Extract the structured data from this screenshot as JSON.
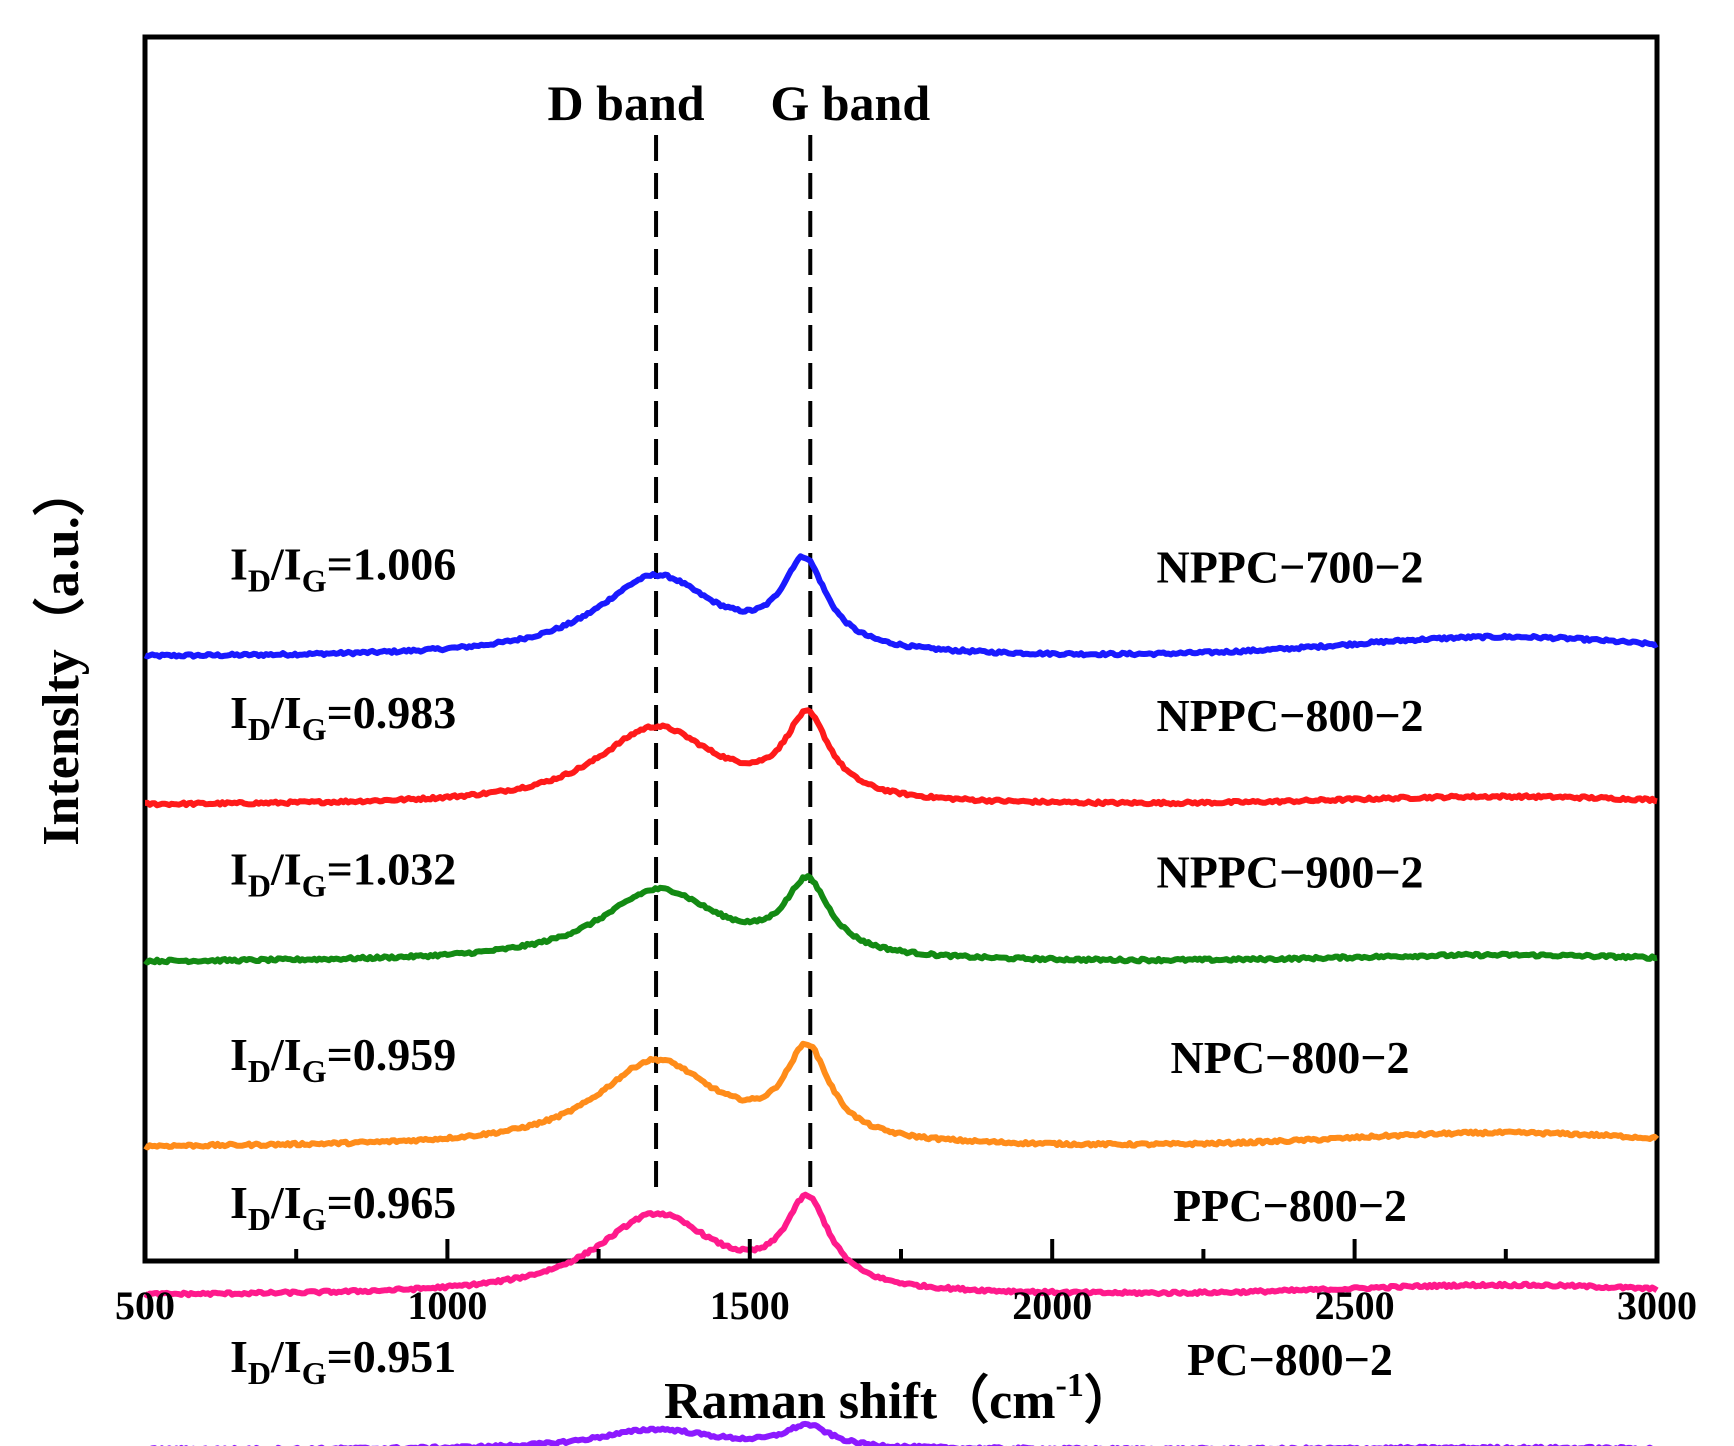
{
  "chart_data": {
    "type": "line",
    "title": "",
    "xlabel": "Raman shift",
    "xlabel_unit_open": "（cm",
    "xlabel_unit_sup": "-1",
    "xlabel_unit_close": "）",
    "ylabel": "Intenslty（a.u.）",
    "xlim": [
      500,
      3000
    ],
    "ylim": [
      0,
      11
    ],
    "y_tick_labels_shown": false,
    "x_ticks": [
      500,
      1000,
      1500,
      2000,
      2500,
      3000
    ],
    "x_minor_ticks": [
      750,
      1250,
      1750,
      2250,
      2750
    ],
    "x_tick_labels": [
      "500",
      "1000",
      "1500",
      "2000",
      "2500",
      "3000"
    ],
    "reference_lines": [
      {
        "name": "D band",
        "x": 1345,
        "style": "dashed"
      },
      {
        "name": "G band",
        "x": 1600,
        "style": "dashed"
      }
    ],
    "series": [
      {
        "name": "NPPC−700−2",
        "color": "#1a1aff",
        "offset": 8.85,
        "d_peak": 1.4,
        "g_peak": 1.5,
        "d_center": 1345,
        "g_center": 1590,
        "dip_shift": 0.0,
        "second_order": 0.35,
        "ratio_sub": "D",
        "ratio_sub2": "G",
        "ratio_value": "=1.006"
      },
      {
        "name": "NPPC−800−2",
        "color": "#ff1a1a",
        "offset": 6.25,
        "d_peak": 1.35,
        "g_peak": 1.4,
        "d_center": 1345,
        "g_center": 1595,
        "dip_shift": 0.0,
        "second_order": 0.15,
        "ratio_sub": "D",
        "ratio_sub2": "G",
        "ratio_value": "=0.983"
      },
      {
        "name": "NPPC−900−2",
        "color": "#138a13",
        "offset": 3.5,
        "d_peak": 1.25,
        "g_peak": 1.25,
        "d_center": 1350,
        "g_center": 1595,
        "dip_shift": 0.0,
        "second_order": 0.12,
        "ratio_sub": "D",
        "ratio_sub2": "G",
        "ratio_value": "=1.032"
      },
      {
        "name": "NPC−800−2",
        "color": "#ff8c1a",
        "offset": 0.25,
        "d_peak": 1.5,
        "g_peak": 1.55,
        "d_center": 1345,
        "g_center": 1595,
        "dip_shift": 0.0,
        "second_order": 0.25,
        "ratio_sub": "D",
        "ratio_sub2": "G",
        "ratio_value": "=0.959"
      },
      {
        "name": "PPC−800−2",
        "color": "#ff1a8c",
        "offset": -2.35,
        "d_peak": 1.4,
        "g_peak": 1.5,
        "d_center": 1345,
        "g_center": 1595,
        "dip_shift": 0.0,
        "second_order": 0.18,
        "ratio_sub": "D",
        "ratio_sub2": "G",
        "ratio_value": "=0.965"
      },
      {
        "name": "PC−800−2",
        "color": "#8c1aff",
        "offset": -5.05,
        "d_peak": 0.35,
        "g_peak": 0.38,
        "d_center": 1345,
        "g_center": 1595,
        "dip_shift": 0.0,
        "second_order": 0.03,
        "ratio_sub": "D",
        "ratio_sub2": "G",
        "ratio_value": "=0.951"
      }
    ]
  }
}
